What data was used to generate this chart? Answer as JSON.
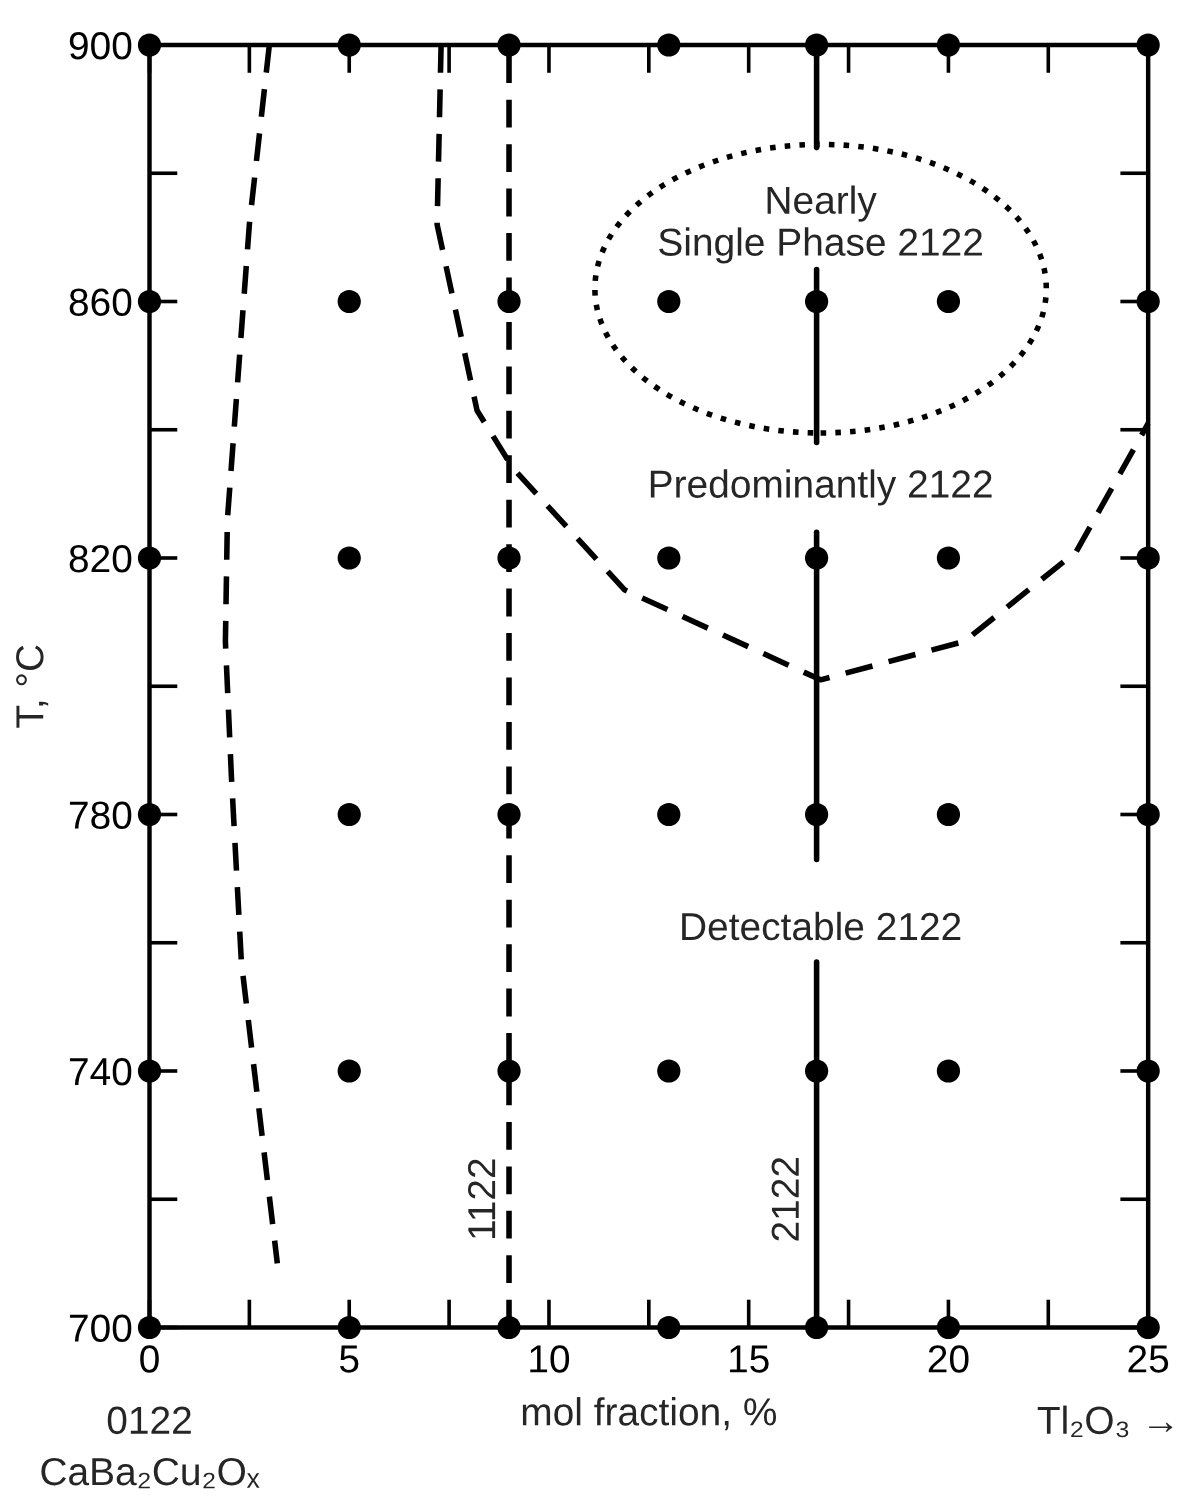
{
  "chart_data": {
    "type": "scatter",
    "xlabel": "mol fraction, %",
    "ylabel": "T, °C",
    "xlim": [
      0,
      25
    ],
    "ylim": [
      700,
      900
    ],
    "xticks": [
      0,
      {
        "value": 2.5,
        "label": null
      },
      5,
      {
        "value": 7.5,
        "label": null
      },
      10,
      {
        "value": 12.5,
        "label": null
      },
      15,
      {
        "value": 17.5,
        "label": null
      },
      20,
      {
        "value": 22.5,
        "label": null
      },
      25
    ],
    "yticks": [
      700,
      {
        "value": 720,
        "label": null
      },
      740,
      {
        "value": 760,
        "label": null
      },
      780,
      {
        "value": 800,
        "label": null
      },
      820,
      {
        "value": 840,
        "label": null
      },
      860,
      {
        "value": 880,
        "label": null
      },
      900
    ],
    "series": [
      {
        "color": "#000000",
        "marker": "circle",
        "x": [
          0,
          5,
          9,
          13,
          16.7,
          20,
          25,
          0,
          5,
          9,
          13,
          16.7,
          20,
          25,
          0,
          5,
          9,
          13,
          16.7,
          20,
          25,
          0,
          5,
          9,
          13,
          16.7,
          20,
          25,
          0,
          5,
          9,
          13,
          16.7,
          20,
          25,
          0,
          5,
          9,
          13,
          16.7,
          20,
          25
        ],
        "values": [
          900,
          900,
          900,
          900,
          900,
          900,
          900,
          860,
          860,
          860,
          860,
          860,
          860,
          860,
          820,
          820,
          820,
          820,
          820,
          820,
          820,
          780,
          780,
          780,
          780,
          780,
          780,
          780,
          740,
          740,
          740,
          740,
          740,
          740,
          740,
          700,
          700,
          700,
          700,
          700,
          700,
          700
        ]
      },
      {
        "type": "line",
        "color": "#000000",
        "line_style": "dashed",
        "x": [
          9,
          9
        ],
        "values": [
          700,
          900
        ]
      },
      {
        "type": "line",
        "color": "#000000",
        "line_style": "solid",
        "x": [
          16.7,
          16.7
        ],
        "values": [
          700,
          757
        ]
      },
      {
        "type": "line",
        "color": "#000000",
        "line_style": "solid",
        "x": [
          16.7,
          16.7
        ],
        "values": [
          773,
          824
        ]
      },
      {
        "type": "line",
        "color": "#000000",
        "line_style": "solid",
        "x": [
          16.7,
          16.7
        ],
        "values": [
          838,
          865
        ]
      },
      {
        "type": "line",
        "color": "#000000",
        "line_style": "solid",
        "x": [
          16.7,
          16.7
        ],
        "values": [
          884,
          900
        ]
      },
      {
        "type": "line",
        "color": "#000000",
        "line_style": "dashed",
        "x": [
          3.0,
          2.5,
          1.95,
          1.9,
          2.05,
          2.3,
          3.2
        ],
        "values": [
          900,
          872,
          826,
          807,
          786,
          757,
          710
        ]
      },
      {
        "type": "line",
        "color": "#000000",
        "line_style": "dashed",
        "x": [
          7.3,
          7.2,
          8.2,
          9.1,
          11.9,
          16.8,
          20.4,
          23.2,
          25
        ],
        "values": [
          900,
          872,
          843,
          834,
          815,
          801,
          807,
          821,
          841
        ]
      }
    ],
    "annotations": [
      "Nearly\nSingle Phase 2122",
      "Predominantly 2122",
      "Detectable 2122",
      "1122",
      "2122",
      "0122",
      "CaBa₂Cu₂Oₓ",
      "Tl₂O₃ →"
    ]
  }
}
